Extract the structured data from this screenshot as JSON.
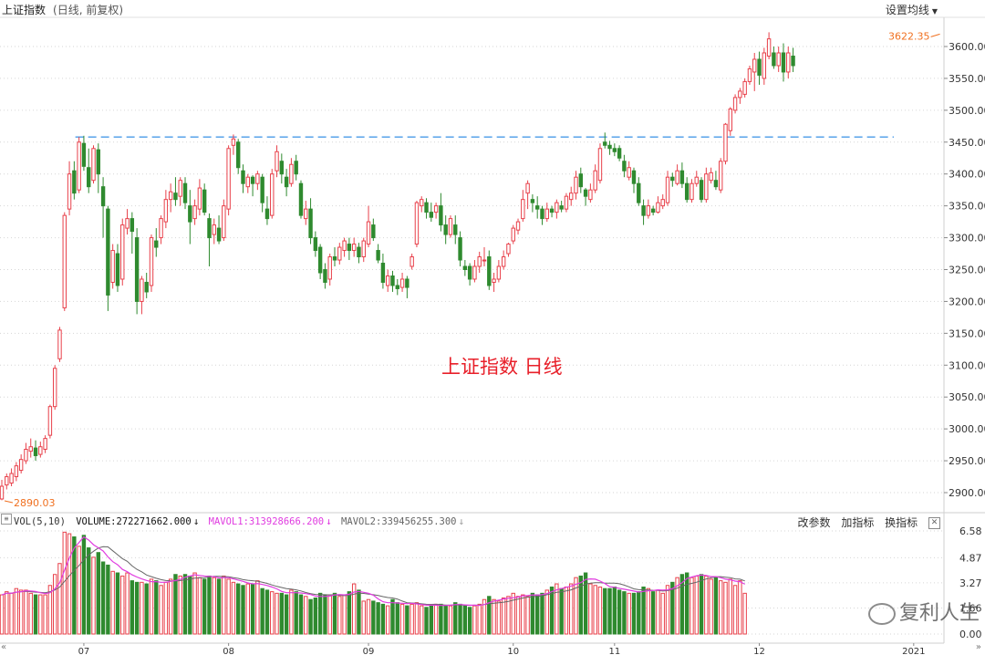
{
  "header": {
    "title": "上证指数",
    "subtitle": "(日线, 前复权)",
    "settings_label": "设置均线"
  },
  "annotation": "上证指数  日线",
  "watermark": "复利人生",
  "colors": {
    "up": "#e8404a",
    "down": "#2f8a2f",
    "grid": "#d6d6d6",
    "resistance": "#4a9be8",
    "mavol1": "#e03ce0",
    "mavol2": "#666666",
    "max_label": "#f07020"
  },
  "volume_panel": {
    "indicator": "VOL(5,10)",
    "volume_label": "VOLUME:",
    "volume_value": "272271662.000",
    "mavol1_label": "MAVOL1:",
    "mavol1_value": "313928666.200",
    "mavol2_label": "MAVOL2:",
    "mavol2_value": "339456255.300",
    "tools": [
      "改参数",
      "加指标",
      "换指标"
    ]
  },
  "chart_data": {
    "type": "candlestick",
    "title": "上证指数",
    "price_axis": {
      "ticks": [
        "3600.00",
        "3550.00",
        "3500.00",
        "3450.00",
        "3400.00",
        "3350.00",
        "3300.00",
        "3250.00",
        "3200.00",
        "3150.00",
        "3100.00",
        "3050.00",
        "3000.00",
        "2950.00",
        "2900.00"
      ],
      "ylim": [
        2890,
        3622.35
      ]
    },
    "volume_axis": {
      "ticks": [
        "6.58",
        "4.87",
        "3.27",
        "1.66",
        "0.00"
      ],
      "ylim": [
        0,
        6.58
      ]
    },
    "x_labels": [
      "07",
      "08",
      "09",
      "10",
      "11",
      "12",
      "2021"
    ],
    "x_label_index": [
      17,
      47,
      76,
      106,
      127,
      157,
      189
    ],
    "min_marker": {
      "label": "2890.03",
      "value": 2890.03,
      "index": 0
    },
    "max_marker": {
      "label": "3622.35",
      "value": 3622.35,
      "index": 195
    },
    "resistance_level": 3458,
    "candles": [
      [
        2890.03,
        2910,
        2920,
        2888
      ],
      [
        2912,
        2925,
        2930,
        2905
      ],
      [
        2915,
        2930,
        2938,
        2910
      ],
      [
        2925,
        2942,
        2948,
        2918
      ],
      [
        2935,
        2952,
        2960,
        2930
      ],
      [
        2950,
        2968,
        2978,
        2945
      ],
      [
        2965,
        2972,
        2985,
        2955
      ],
      [
        2970,
        2958,
        2982,
        2950
      ],
      [
        2960,
        2972,
        2980,
        2955
      ],
      [
        2968,
        2985,
        2990,
        2962
      ],
      [
        2990,
        3035,
        3038,
        2985
      ],
      [
        3035,
        3095,
        3100,
        3030
      ],
      [
        3110,
        3155,
        3160,
        3105
      ],
      [
        3190,
        3335,
        3340,
        3185
      ],
      [
        3345,
        3400,
        3420,
        3335
      ],
      [
        3405,
        3370,
        3420,
        3360
      ],
      [
        3375,
        3450,
        3458,
        3370
      ],
      [
        3448,
        3412,
        3460,
        3405
      ],
      [
        3410,
        3380,
        3440,
        3370
      ],
      [
        3390,
        3440,
        3445,
        3385
      ],
      [
        3438,
        3400,
        3448,
        3370
      ],
      [
        3380,
        3350,
        3395,
        3300
      ],
      [
        3345,
        3210,
        3350,
        3185
      ],
      [
        3230,
        3280,
        3290,
        3220
      ],
      [
        3275,
        3225,
        3290,
        3215
      ],
      [
        3235,
        3320,
        3330,
        3225
      ],
      [
        3315,
        3330,
        3345,
        3305
      ],
      [
        3330,
        3310,
        3340,
        3275
      ],
      [
        3300,
        3200,
        3315,
        3180
      ],
      [
        3200,
        3235,
        3240,
        3180
      ],
      [
        3230,
        3215,
        3245,
        3205
      ],
      [
        3225,
        3300,
        3305,
        3215
      ],
      [
        3295,
        3285,
        3315,
        3270
      ],
      [
        3300,
        3330,
        3335,
        3290
      ],
      [
        3325,
        3360,
        3375,
        3315
      ],
      [
        3360,
        3372,
        3385,
        3340
      ],
      [
        3370,
        3360,
        3395,
        3350
      ],
      [
        3365,
        3390,
        3395,
        3350
      ],
      [
        3385,
        3355,
        3395,
        3345
      ],
      [
        3350,
        3325,
        3375,
        3290
      ],
      [
        3330,
        3350,
        3360,
        3320
      ],
      [
        3345,
        3378,
        3392,
        3335
      ],
      [
        3375,
        3340,
        3385,
        3335
      ],
      [
        3330,
        3300,
        3338,
        3255
      ],
      [
        3305,
        3320,
        3330,
        3290
      ],
      [
        3315,
        3295,
        3335,
        3290
      ],
      [
        3300,
        3350,
        3360,
        3295
      ],
      [
        3345,
        3440,
        3445,
        3335
      ],
      [
        3445,
        3455,
        3462,
        3430
      ],
      [
        3450,
        3410,
        3455,
        3400
      ],
      [
        3405,
        3385,
        3415,
        3370
      ],
      [
        3380,
        3395,
        3400,
        3370
      ],
      [
        3395,
        3385,
        3398,
        3365
      ],
      [
        3385,
        3400,
        3405,
        3375
      ],
      [
        3395,
        3355,
        3400,
        3340
      ],
      [
        3345,
        3330,
        3365,
        3320
      ],
      [
        3335,
        3400,
        3408,
        3330
      ],
      [
        3405,
        3435,
        3445,
        3395
      ],
      [
        3420,
        3400,
        3432,
        3385
      ],
      [
        3395,
        3380,
        3408,
        3365
      ],
      [
        3385,
        3415,
        3425,
        3380
      ],
      [
        3420,
        3400,
        3430,
        3390
      ],
      [
        3385,
        3335,
        3390,
        3330
      ],
      [
        3330,
        3345,
        3358,
        3320
      ],
      [
        3345,
        3300,
        3362,
        3290
      ],
      [
        3300,
        3280,
        3310,
        3270
      ],
      [
        3285,
        3245,
        3290,
        3235
      ],
      [
        3250,
        3230,
        3260,
        3220
      ],
      [
        3235,
        3270,
        3275,
        3225
      ],
      [
        3270,
        3265,
        3285,
        3255
      ],
      [
        3265,
        3285,
        3292,
        3258
      ],
      [
        3280,
        3295,
        3300,
        3270
      ],
      [
        3290,
        3280,
        3300,
        3265
      ],
      [
        3280,
        3290,
        3300,
        3270
      ],
      [
        3285,
        3270,
        3292,
        3260
      ],
      [
        3270,
        3295,
        3300,
        3262
      ],
      [
        3290,
        3325,
        3350,
        3285
      ],
      [
        3320,
        3300,
        3330,
        3295
      ],
      [
        3280,
        3265,
        3290,
        3260
      ],
      [
        3260,
        3230,
        3275,
        3220
      ],
      [
        3225,
        3240,
        3250,
        3215
      ],
      [
        3240,
        3225,
        3248,
        3215
      ],
      [
        3225,
        3220,
        3235,
        3210
      ],
      [
        3222,
        3235,
        3245,
        3215
      ],
      [
        3235,
        3222,
        3240,
        3205
      ],
      [
        3255,
        3270,
        3275,
        3250
      ],
      [
        3290,
        3355,
        3358,
        3285
      ],
      [
        3350,
        3360,
        3365,
        3340
      ],
      [
        3355,
        3340,
        3362,
        3330
      ],
      [
        3340,
        3332,
        3355,
        3325
      ],
      [
        3340,
        3350,
        3355,
        3330
      ],
      [
        3350,
        3320,
        3370,
        3310
      ],
      [
        3320,
        3305,
        3335,
        3290
      ],
      [
        3305,
        3330,
        3335,
        3300
      ],
      [
        3320,
        3305,
        3335,
        3290
      ],
      [
        3300,
        3265,
        3310,
        3255
      ],
      [
        3255,
        3250,
        3265,
        3240
      ],
      [
        3255,
        3235,
        3260,
        3225
      ],
      [
        3235,
        3255,
        3265,
        3230
      ],
      [
        3255,
        3270,
        3278,
        3245
      ],
      [
        3265,
        3265,
        3285,
        3255
      ],
      [
        3270,
        3225,
        3280,
        3218
      ],
      [
        3230,
        3235,
        3245,
        3215
      ],
      [
        3235,
        3255,
        3265,
        3230
      ],
      [
        3255,
        3270,
        3280,
        3250
      ],
      [
        3275,
        3290,
        3292,
        3270
      ],
      [
        3295,
        3315,
        3320,
        3290
      ],
      [
        3312,
        3325,
        3330,
        3305
      ],
      [
        3330,
        3360,
        3375,
        3325
      ],
      [
        3370,
        3385,
        3390,
        3345
      ],
      [
        3360,
        3355,
        3368,
        3340
      ],
      [
        3350,
        3345,
        3365,
        3330
      ],
      [
        3345,
        3330,
        3350,
        3320
      ],
      [
        3330,
        3345,
        3355,
        3325
      ],
      [
        3345,
        3340,
        3350,
        3332
      ],
      [
        3340,
        3355,
        3360,
        3330
      ],
      [
        3350,
        3345,
        3358,
        3340
      ],
      [
        3345,
        3365,
        3370,
        3340
      ],
      [
        3360,
        3370,
        3380,
        3350
      ],
      [
        3370,
        3395,
        3405,
        3360
      ],
      [
        3400,
        3380,
        3410,
        3370
      ],
      [
        3375,
        3365,
        3378,
        3350
      ],
      [
        3360,
        3375,
        3385,
        3355
      ],
      [
        3375,
        3405,
        3415,
        3370
      ],
      [
        3390,
        3440,
        3448,
        3385
      ],
      [
        3450,
        3445,
        3465,
        3440
      ],
      [
        3445,
        3440,
        3452,
        3430
      ],
      [
        3440,
        3435,
        3448,
        3428
      ],
      [
        3440,
        3425,
        3445,
        3420
      ],
      [
        3420,
        3405,
        3430,
        3395
      ],
      [
        3395,
        3410,
        3420,
        3390
      ],
      [
        3405,
        3385,
        3410,
        3370
      ],
      [
        3385,
        3355,
        3395,
        3350
      ],
      [
        3350,
        3335,
        3360,
        3320
      ],
      [
        3335,
        3350,
        3360,
        3330
      ],
      [
        3345,
        3340,
        3350,
        3335
      ],
      [
        3340,
        3355,
        3365,
        3338
      ],
      [
        3350,
        3360,
        3368,
        3345
      ],
      [
        3355,
        3395,
        3405,
        3350
      ],
      [
        3395,
        3390,
        3402,
        3380
      ],
      [
        3385,
        3405,
        3415,
        3382
      ],
      [
        3405,
        3385,
        3418,
        3378
      ],
      [
        3385,
        3360,
        3395,
        3355
      ],
      [
        3360,
        3385,
        3392,
        3355
      ],
      [
        3385,
        3395,
        3405,
        3380
      ],
      [
        3390,
        3360,
        3395,
        3355
      ],
      [
        3360,
        3400,
        3410,
        3355
      ],
      [
        3390,
        3402,
        3410,
        3385
      ],
      [
        3390,
        3380,
        3405,
        3375
      ],
      [
        3375,
        3420,
        3425,
        3370
      ],
      [
        3420,
        3478,
        3480,
        3415
      ],
      [
        3468,
        3502,
        3505,
        3460
      ],
      [
        3500,
        3520,
        3525,
        3495
      ],
      [
        3520,
        3530,
        3535,
        3510
      ],
      [
        3525,
        3545,
        3550,
        3520
      ],
      [
        3545,
        3565,
        3570,
        3540
      ],
      [
        3560,
        3580,
        3590,
        3530
      ],
      [
        3580,
        3555,
        3592,
        3540
      ],
      [
        3550,
        3590,
        3598,
        3540
      ],
      [
        3585,
        3612,
        3622.35,
        3580
      ],
      [
        3590,
        3570,
        3600,
        3565
      ],
      [
        3570,
        3590,
        3600,
        3560
      ],
      [
        3590,
        3560,
        3605,
        3545
      ],
      [
        3560,
        3590,
        3600,
        3550
      ],
      [
        3585,
        3570,
        3598,
        3560
      ]
    ],
    "volume": [
      2.5,
      2.7,
      2.6,
      2.9,
      2.8,
      2.8,
      2.6,
      2.5,
      2.5,
      2.5,
      3.1,
      3.8,
      4.5,
      6.5,
      6.4,
      6.2,
      5.6,
      6.3,
      5.5,
      4.9,
      5.2,
      4.6,
      4.4,
      4.0,
      3.9,
      3.7,
      3.9,
      3.4,
      3.3,
      3.3,
      3.2,
      3.5,
      3.4,
      3.1,
      3.3,
      3.5,
      3.8,
      3.7,
      3.8,
      3.7,
      3.9,
      3.6,
      3.5,
      3.7,
      3.6,
      3.5,
      3.7,
      3.5,
      3.3,
      3.2,
      3.1,
      3.2,
      3.2,
      3.4,
      2.9,
      2.8,
      2.7,
      2.6,
      2.6,
      2.5,
      2.8,
      2.7,
      2.5,
      2.4,
      2.2,
      2.3,
      2.6,
      2.5,
      2.5,
      2.6,
      2.4,
      2.5,
      2.7,
      3.2,
      2.8,
      2.1,
      2.2,
      2.1,
      2.0,
      1.9,
      1.8,
      2.2,
      2.0,
      1.9,
      1.8,
      1.9,
      2.0,
      1.8,
      1.7,
      1.8,
      1.9,
      1.9,
      1.8,
      1.8,
      2.0,
      1.9,
      1.8,
      1.7,
      1.8,
      1.9,
      2.2,
      2.4,
      2.2,
      2.1,
      2.3,
      2.4,
      2.6,
      2.4,
      2.5,
      2.4,
      2.6,
      2.5,
      2.6,
      2.8,
      3.0,
      3.2,
      2.9,
      3.0,
      3.2,
      3.6,
      3.7,
      3.9,
      3.2,
      3.1,
      3.0,
      2.9,
      2.9,
      3.0,
      2.8,
      2.7,
      2.6,
      2.6,
      2.7,
      3.0,
      2.9,
      2.7,
      2.8,
      2.6,
      3.1,
      3.3,
      3.6,
      3.8,
      3.9,
      3.6,
      3.7,
      3.8,
      3.7,
      3.5,
      3.6,
      3.4,
      3.3,
      3.5,
      3.1,
      3.4,
      2.6
    ]
  }
}
